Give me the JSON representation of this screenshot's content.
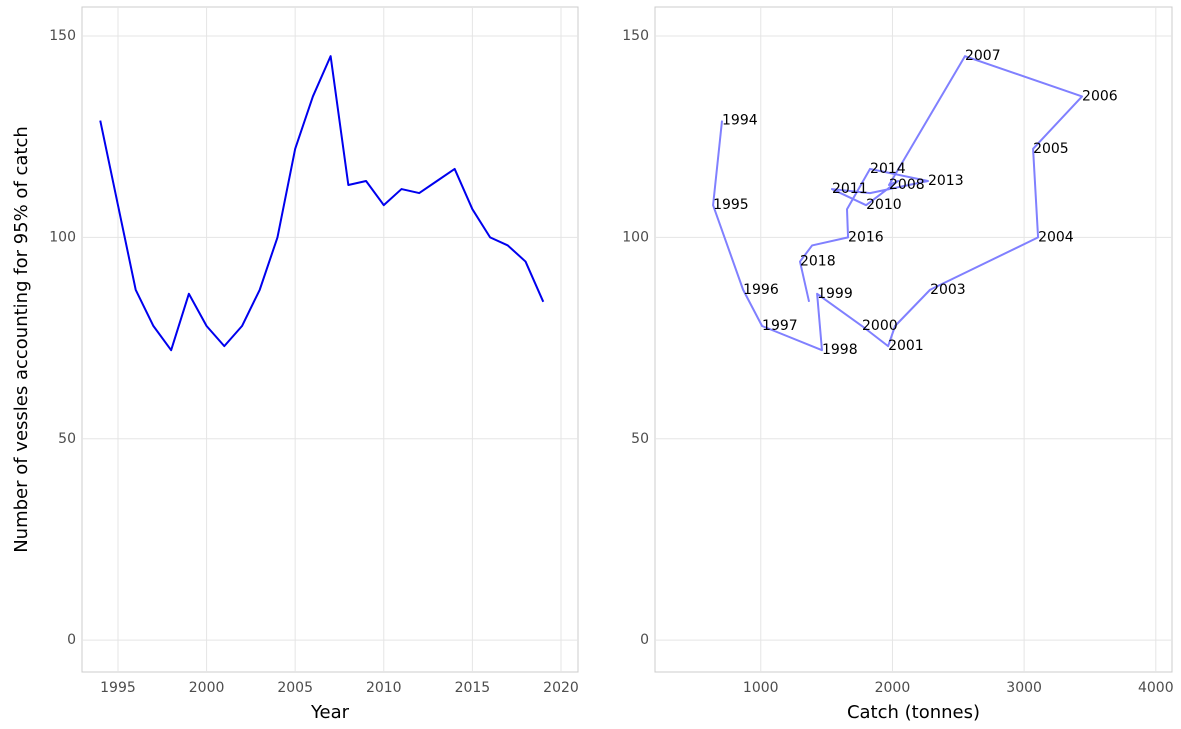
{
  "chart_data": [
    {
      "type": "line",
      "xlabel": "Year",
      "ylabel": "Number of vessles accounting for 95% of catch",
      "color": "#0000ee",
      "grid": true,
      "x": [
        1994,
        1995,
        1996,
        1997,
        1998,
        1999,
        2000,
        2001,
        2002,
        2003,
        2004,
        2005,
        2006,
        2007,
        2008,
        2009,
        2010,
        2011,
        2012,
        2013,
        2014,
        2015,
        2016,
        2017,
        2018,
        2019
      ],
      "values": [
        129,
        108,
        87,
        78,
        72,
        86,
        78,
        73,
        78,
        87,
        100,
        122,
        135,
        145,
        113,
        114,
        108,
        112,
        111,
        114,
        117,
        107,
        100,
        98,
        94,
        84
      ],
      "xlim": [
        1992.97,
        2020.96
      ],
      "ylim": [
        -7.9,
        157.2
      ],
      "xticks": [
        1995,
        2000,
        2005,
        2010,
        2015,
        2020
      ],
      "yticks": [
        0,
        50,
        100,
        150
      ]
    },
    {
      "type": "path",
      "xlabel": "Catch (tonnes)",
      "color": "#8080ff",
      "grid": true,
      "x": [
        706,
        638,
        866,
        1010,
        1465,
        1428,
        1769,
        1967,
        2020,
        2286,
        3106,
        3068,
        3440,
        2551,
        1974,
        2043,
        1800,
        1541,
        1830,
        2270,
        1830,
        1655,
        1663,
        1390,
        1298,
        1367
      ],
      "values": [
        129,
        108,
        87,
        78,
        72,
        86,
        78,
        73,
        78,
        87,
        100,
        122,
        135,
        145,
        113,
        114,
        108,
        112,
        111,
        114,
        117,
        107,
        100,
        98,
        94,
        84
      ],
      "point_labels": [
        "1994",
        "1995",
        "1996",
        "1997",
        "1998",
        "1999",
        "2000",
        "2001",
        null,
        "2003",
        "2004",
        "2005",
        "2006",
        "2007",
        "2008",
        null,
        "2010",
        "2011",
        null,
        "2013",
        "2014",
        null,
        "2016",
        null,
        "2018",
        null
      ],
      "xlim": [
        197,
        4123
      ],
      "ylim": [
        -7.9,
        157.2
      ],
      "xticks": [
        1000,
        2000,
        3000,
        4000
      ],
      "yticks": [
        0,
        50,
        100,
        150
      ]
    }
  ]
}
